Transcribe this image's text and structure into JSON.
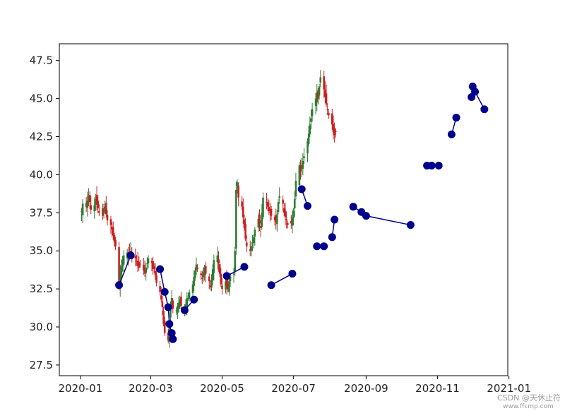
{
  "chart_data": {
    "type": "line",
    "title": "",
    "xlabel": "",
    "ylabel": "",
    "xlim": [
      "2019-12-14",
      "2020-12-31"
    ],
    "ylim": [
      26.8,
      48.6
    ],
    "grid": false,
    "legend": "none",
    "x_ticks": [
      "2020-01",
      "2020-03",
      "2020-05",
      "2020-07",
      "2020-09",
      "2020-11",
      "2021-01"
    ],
    "y_ticks": [
      "27.5",
      "30.0",
      "32.5",
      "35.0",
      "37.5",
      "40.0",
      "42.5",
      "45.0",
      "47.5"
    ],
    "colors": {
      "up": "#2e7d32",
      "down": "#cc1f1f",
      "line": "#00008b",
      "marker": "#00008b",
      "axes": "#000000"
    },
    "candles": {
      "description_start": "2020-01-02",
      "close": [
        37.6,
        38.1,
        37.9,
        38.3,
        38.6,
        38.2,
        37.7,
        38.0,
        38.4,
        38.1,
        37.8,
        37.5,
        37.3,
        37.6,
        37.9,
        37.4,
        37.0,
        36.7,
        36.4,
        36.0,
        35.6,
        35.3,
        32.8,
        33.5,
        34.0,
        34.4,
        34.7,
        34.9,
        34.6,
        34.8,
        35.0,
        34.7,
        34.5,
        34.3,
        34.0,
        33.9,
        34.1,
        33.7,
        33.5,
        33.9,
        34.2,
        34.5,
        34.2,
        33.8,
        33.8,
        33.4,
        32.9,
        32.3,
        31.8,
        31.3,
        30.2,
        29.6,
        29.1,
        30.4,
        31.5,
        31.9,
        31.2,
        31.1,
        31.4,
        31.6,
        31.8,
        31.4,
        31.2,
        31.5,
        31.9,
        32.0,
        32.3,
        32.8,
        33.3,
        33.7,
        34.1,
        33.8,
        33.4,
        33.2,
        33.6,
        33.9,
        33.5,
        33.0,
        32.6,
        33.1,
        33.8,
        34.4,
        34.7,
        34.2,
        33.5,
        32.8,
        32.5,
        33.0,
        32.7,
        32.5,
        33.0,
        33.3,
        33.5,
        35.0,
        39.0,
        39.5,
        38.5,
        37.9,
        37.2,
        36.5,
        35.8,
        35.3,
        35.0,
        35.3,
        35.6,
        35.9,
        36.4,
        37.1,
        36.8,
        36.5,
        37.5,
        38.5,
        38.2,
        37.9,
        37.6,
        37.5,
        37.3,
        37.0,
        36.9,
        37.4,
        38.2,
        38.6,
        38.1,
        37.5,
        37.2,
        37.0,
        36.7,
        36.8,
        37.2,
        37.6,
        38.4,
        39.6,
        40.6,
        40.2,
        40.6,
        40.9,
        41.2,
        42.2,
        42.7,
        43.3,
        43.7,
        44.3,
        45.0,
        45.4,
        45.0,
        45.8,
        46.4,
        45.6,
        45.1,
        44.6,
        44.3,
        43.9,
        43.3,
        42.8,
        42.6,
        42.8
      ]
    },
    "series": [
      {
        "x": [
          "2020-02-03",
          "2020-02-13"
        ],
        "y": [
          32.75,
          34.7
        ]
      },
      {
        "x": [
          "2020-03-09",
          "2020-03-13",
          "2020-03-16",
          "2020-03-17",
          "2020-03-19",
          "2020-03-20"
        ],
        "y": [
          33.8,
          32.3,
          31.3,
          30.2,
          29.6,
          29.2
        ]
      },
      {
        "x": [
          "2020-03-30",
          "2020-04-07"
        ],
        "y": [
          31.1,
          31.8
        ]
      },
      {
        "x": [
          "2020-05-05",
          "2020-05-20"
        ],
        "y": [
          33.35,
          33.95
        ]
      },
      {
        "x": [
          "2020-06-12",
          "2020-06-30"
        ],
        "y": [
          32.75,
          33.5
        ]
      },
      {
        "x": [
          "2020-07-08",
          "2020-07-13"
        ],
        "y": [
          39.05,
          37.95
        ]
      },
      {
        "x": [
          "2020-07-21",
          "2020-07-27"
        ],
        "y": [
          35.3,
          35.3
        ]
      },
      {
        "x": [
          "2020-08-03",
          "2020-08-05"
        ],
        "y": [
          35.9,
          37.05
        ]
      },
      {
        "x": [
          "2020-08-21",
          "2020-08-28",
          "2020-09-01",
          "2020-10-09"
        ],
        "y": [
          37.9,
          37.55,
          37.3,
          36.7
        ]
      },
      {
        "x": [
          "2020-10-23",
          "2020-10-27"
        ],
        "y": [
          40.6,
          40.6
        ]
      },
      {
        "x": [
          "2020-11-02"
        ],
        "y": [
          40.6
        ]
      },
      {
        "x": [
          "2020-11-13",
          "2020-11-17"
        ],
        "y": [
          42.65,
          43.75
        ]
      },
      {
        "x": [
          "2020-11-30",
          "2020-12-01",
          "2020-12-03",
          "2020-12-11"
        ],
        "y": [
          45.1,
          45.8,
          45.45,
          44.3
        ]
      }
    ]
  },
  "watermark": {
    "text": "CSDN @天休止符",
    "subtext": "www.ffcmp.com"
  }
}
